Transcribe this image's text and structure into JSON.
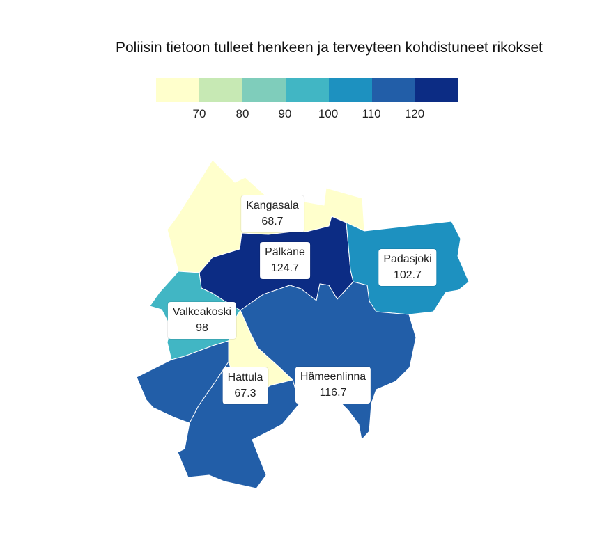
{
  "title": "Poliisin tietoon tulleet henkeen ja terveyteen kohdistuneet rikokset",
  "legend": {
    "colors": [
      "#ffffcc",
      "#c7e9b4",
      "#7fcdbb",
      "#41b6c4",
      "#1d91c0",
      "#225ea8",
      "#0c2c84"
    ],
    "ticks": [
      "70",
      "80",
      "90",
      "100",
      "110",
      "120"
    ]
  },
  "chart_data": {
    "type": "choropleth",
    "title": "Poliisin tietoon tulleet henkeen ja terveyteen kohdistuneet rikokset",
    "regions": [
      {
        "name": "Kangasala",
        "value": 68.7,
        "color": "#ffffcc"
      },
      {
        "name": "Pälkäne",
        "value": 124.7,
        "color": "#0c2c84"
      },
      {
        "name": "Padasjoki",
        "value": 102.7,
        "color": "#1d91c0"
      },
      {
        "name": "Valkeakoski",
        "value": 98,
        "color": "#41b6c4"
      },
      {
        "name": "Hattula",
        "value": 67.3,
        "color": "#ffffcc"
      },
      {
        "name": "Hämeenlinna",
        "value": 116.7,
        "color": "#225ea8"
      }
    ],
    "color_scale": {
      "breaks": [
        70,
        80,
        90,
        100,
        110,
        120
      ],
      "colors": [
        "#ffffcc",
        "#c7e9b4",
        "#7fcdbb",
        "#41b6c4",
        "#1d91c0",
        "#225ea8",
        "#0c2c84"
      ]
    },
    "labels": {
      "kangasala": {
        "name": "Kangasala",
        "value": "68.7"
      },
      "palkane": {
        "name": "Pälkäne",
        "value": "124.7"
      },
      "padasjoki": {
        "name": "Padasjoki",
        "value": "102.7"
      },
      "valkeakoski": {
        "name": "Valkeakoski",
        "value": "98"
      },
      "hattula": {
        "name": "Hattula",
        "value": "67.3"
      },
      "hameenlinna": {
        "name": "Hämeenlinna",
        "value": "116.7"
      }
    }
  }
}
